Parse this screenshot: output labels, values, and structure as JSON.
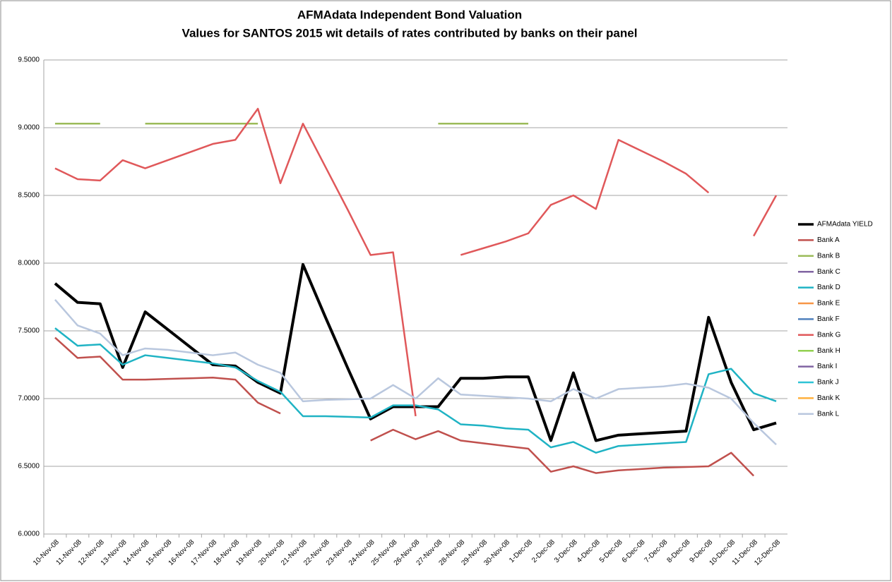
{
  "chart_data": {
    "type": "line",
    "title": "AFMAdata Independent Bond Valuation",
    "subtitle": "Values for SANTOS 2015 wit details of rates contributed by banks on their panel",
    "categories": [
      "10-Nov-08",
      "11-Nov-08",
      "12-Nov-08",
      "13-Nov-08",
      "14-Nov-08",
      "15-Nov-08",
      "16-Nov-08",
      "17-Nov-08",
      "18-Nov-08",
      "19-Nov-08",
      "20-Nov-08",
      "21-Nov-08",
      "22-Nov-08",
      "23-Nov-08",
      "24-Nov-08",
      "25-Nov-08",
      "26-Nov-08",
      "27-Nov-08",
      "28-Nov-08",
      "29-Nov-08",
      "30-Nov-08",
      "1-Dec-08",
      "2-Dec-08",
      "3-Dec-08",
      "4-Dec-08",
      "5-Dec-08",
      "6-Dec-08",
      "7-Dec-08",
      "8-Dec-08",
      "9-Dec-08",
      "10-Dec-08",
      "11-Dec-08",
      "12-Dec-08"
    ],
    "ylim": [
      6.0,
      9.5
    ],
    "yticks": [
      {
        "value": 6.0,
        "label": "6.0000"
      },
      {
        "value": 6.5,
        "label": "6.5000"
      },
      {
        "value": 7.0,
        "label": "7.0000"
      },
      {
        "value": 7.5,
        "label": "7.5000"
      },
      {
        "value": 8.0,
        "label": "8.0000"
      },
      {
        "value": 8.5,
        "label": "8.5000"
      },
      {
        "value": 9.0,
        "label": "9.0000"
      },
      {
        "value": 9.5,
        "label": "9.5000"
      }
    ],
    "grid": true,
    "legend": "right",
    "series": [
      {
        "name": "AFMAdata YIELD",
        "color": "#000000",
        "width": 4,
        "values": [
          7.85,
          7.71,
          7.7,
          7.23,
          7.64,
          7.51,
          7.38,
          7.25,
          7.24,
          7.12,
          7.04,
          7.99,
          7.6,
          7.22,
          6.85,
          6.94,
          6.94,
          6.94,
          7.15,
          7.15,
          7.16,
          7.16,
          6.69,
          7.19,
          6.69,
          6.73,
          6.74,
          6.75,
          6.76,
          7.6,
          7.12,
          6.77,
          6.82
        ]
      },
      {
        "name": "Bank A",
        "color": "#c0504d",
        "width": 2.5,
        "values": [
          7.45,
          7.3,
          7.31,
          7.14,
          7.14,
          7.145,
          7.15,
          7.155,
          7.14,
          6.97,
          6.89,
          null,
          null,
          null,
          6.69,
          6.77,
          6.7,
          6.76,
          6.69,
          6.67,
          6.65,
          6.63,
          6.46,
          6.5,
          6.45,
          6.47,
          6.48,
          6.49,
          6.495,
          6.5,
          6.6,
          6.43,
          null
        ]
      },
      {
        "name": "Bank B",
        "color": "#9bbb59",
        "width": 2.5,
        "values": [
          9.03,
          9.03,
          9.03,
          null,
          9.03,
          9.03,
          9.03,
          9.03,
          9.03,
          9.03,
          null,
          null,
          null,
          null,
          null,
          null,
          null,
          9.03,
          9.03,
          9.03,
          9.03,
          9.03,
          null,
          null,
          null,
          null,
          null,
          null,
          null,
          null,
          null,
          null,
          null
        ]
      },
      {
        "name": "Bank C",
        "color": "#8064a2",
        "width": 2.5,
        "values": [
          null,
          null,
          null,
          null,
          null,
          null,
          null,
          null,
          null,
          null,
          null,
          null,
          null,
          null,
          null,
          null,
          null,
          null,
          null,
          null,
          null,
          null,
          null,
          null,
          null,
          null,
          null,
          null,
          null,
          null,
          null,
          null,
          null
        ]
      },
      {
        "name": "Bank D",
        "color": "#1fb3c4",
        "width": 2.5,
        "values": [
          7.52,
          7.39,
          7.4,
          7.25,
          7.32,
          7.3,
          7.28,
          7.26,
          7.23,
          7.13,
          7.05,
          6.87,
          6.87,
          6.865,
          6.86,
          6.95,
          6.95,
          6.92,
          6.81,
          6.8,
          6.78,
          6.77,
          6.64,
          6.68,
          6.6,
          6.65,
          6.66,
          6.67,
          6.68,
          7.18,
          7.22,
          7.04,
          6.98
        ]
      },
      {
        "name": "Bank E",
        "color": "#f79646",
        "width": 2.5,
        "values": [
          null,
          null,
          null,
          null,
          null,
          null,
          null,
          null,
          null,
          null,
          null,
          null,
          null,
          null,
          null,
          null,
          null,
          null,
          null,
          null,
          null,
          null,
          null,
          null,
          null,
          null,
          null,
          null,
          null,
          null,
          null,
          null,
          null
        ]
      },
      {
        "name": "Bank F",
        "color": "#4f81bd",
        "width": 2.5,
        "values": [
          null,
          null,
          null,
          null,
          null,
          null,
          null,
          null,
          null,
          null,
          null,
          null,
          null,
          null,
          null,
          null,
          null,
          null,
          null,
          null,
          null,
          null,
          null,
          null,
          null,
          null,
          null,
          null,
          null,
          null,
          null,
          null,
          null
        ]
      },
      {
        "name": "Bank G",
        "color": "#e0585a",
        "width": 2.5,
        "values": [
          8.7,
          8.62,
          8.61,
          8.76,
          8.7,
          8.76,
          8.82,
          8.88,
          8.91,
          9.14,
          8.59,
          9.03,
          8.71,
          8.39,
          8.06,
          8.08,
          6.87,
          null,
          8.06,
          8.11,
          8.16,
          8.22,
          8.43,
          8.5,
          8.4,
          8.91,
          8.83,
          8.75,
          8.66,
          8.52,
          null,
          8.2,
          8.5
        ]
      },
      {
        "name": "Bank H",
        "color": "#92d050",
        "width": 2.5,
        "values": [
          null,
          null,
          null,
          null,
          null,
          null,
          null,
          null,
          null,
          null,
          null,
          null,
          null,
          null,
          null,
          null,
          null,
          null,
          null,
          null,
          null,
          null,
          null,
          null,
          null,
          null,
          null,
          null,
          null,
          null,
          null,
          null,
          null
        ]
      },
      {
        "name": "Bank I",
        "color": "#8064a2",
        "width": 2.5,
        "values": [
          null,
          null,
          null,
          null,
          null,
          null,
          null,
          null,
          null,
          null,
          null,
          null,
          null,
          null,
          null,
          null,
          null,
          null,
          null,
          null,
          null,
          null,
          null,
          null,
          null,
          null,
          null,
          null,
          null,
          null,
          null,
          null,
          null
        ]
      },
      {
        "name": "Bank J",
        "color": "#2ec3d6",
        "width": 2.5,
        "values": [
          null,
          null,
          null,
          null,
          null,
          null,
          null,
          null,
          null,
          null,
          null,
          null,
          null,
          null,
          null,
          null,
          null,
          null,
          null,
          null,
          null,
          null,
          null,
          null,
          null,
          null,
          null,
          null,
          null,
          null,
          null,
          null,
          null
        ]
      },
      {
        "name": "Bank K",
        "color": "#ffb13d",
        "width": 2.5,
        "values": [
          null,
          null,
          null,
          null,
          null,
          null,
          null,
          null,
          null,
          null,
          null,
          null,
          null,
          null,
          null,
          null,
          null,
          null,
          null,
          null,
          null,
          null,
          null,
          null,
          null,
          null,
          null,
          null,
          null,
          null,
          null,
          null,
          null
        ]
      },
      {
        "name": "Bank L",
        "color": "#b9c7de",
        "width": 2.5,
        "values": [
          7.73,
          7.54,
          7.48,
          7.32,
          7.37,
          7.36,
          7.34,
          7.32,
          7.34,
          7.25,
          7.19,
          6.98,
          6.99,
          6.995,
          7.0,
          7.1,
          7.0,
          7.15,
          7.03,
          7.02,
          7.01,
          7.0,
          6.98,
          7.07,
          7.0,
          7.07,
          7.08,
          7.09,
          7.11,
          7.08,
          7.0,
          6.82,
          6.66
        ]
      }
    ]
  }
}
